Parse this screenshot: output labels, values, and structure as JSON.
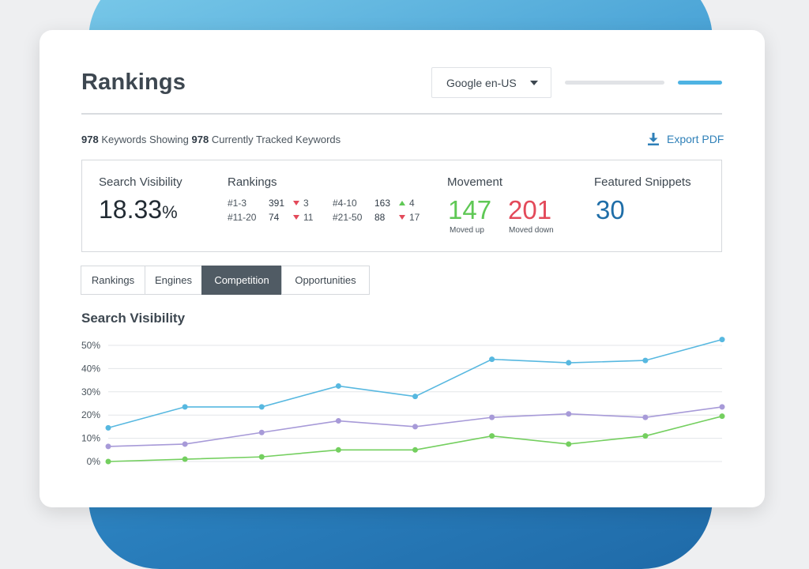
{
  "header": {
    "title": "Rankings",
    "engine_select": {
      "value": "Google en-US"
    }
  },
  "summary": {
    "tracked_count": "978",
    "tracked_text_1": "Keywords Showing",
    "tracked_count_2": "978",
    "tracked_text_2": "Currently Tracked Keywords",
    "export_label": "Export PDF"
  },
  "stats": {
    "visibility": {
      "label": "Search Visibility",
      "value": "18.33",
      "unit": "%"
    },
    "rankings": {
      "label": "Rankings",
      "rows": [
        {
          "range": "#1-3",
          "count": "391",
          "delta": "3",
          "direction": "down"
        },
        {
          "range": "#4-10",
          "count": "163",
          "delta": "4",
          "direction": "up"
        },
        {
          "range": "#11-20",
          "count": "74",
          "delta": "11",
          "direction": "down"
        },
        {
          "range": "#21-50",
          "count": "88",
          "delta": "17",
          "direction": "down"
        }
      ]
    },
    "movement": {
      "label": "Movement",
      "up_value": "147",
      "up_label": "Moved up",
      "down_value": "201",
      "down_label": "Moved down"
    },
    "snippets": {
      "label": "Featured Snippets",
      "value": "30"
    }
  },
  "tabs": [
    {
      "label": "Rankings",
      "active": false
    },
    {
      "label": "Engines",
      "active": false
    },
    {
      "label": "Competition",
      "active": true
    },
    {
      "label": "Opportunities",
      "active": false
    }
  ],
  "colors": {
    "accent": "#4eb3e3",
    "up": "#5fc855",
    "down": "#e34a5a",
    "snippets": "#1f6ea8",
    "tab_active": "#505b64"
  },
  "chart_data": {
    "type": "line",
    "title": "Search Visibility",
    "ylim": [
      0,
      50
    ],
    "yticks": [
      "0%",
      "10%",
      "20%",
      "30%",
      "40%",
      "50%"
    ],
    "grid": true,
    "x": [
      1,
      2,
      3,
      4,
      5,
      6,
      7,
      8,
      9
    ],
    "series": [
      {
        "color": "#57b8e0",
        "values": [
          14.5,
          23.5,
          23.5,
          32.5,
          28,
          44,
          42.5,
          43.5,
          52.5
        ]
      },
      {
        "color": "#a79ad8",
        "values": [
          6.5,
          7.5,
          12.5,
          17.5,
          15,
          19,
          20.5,
          19,
          23.5
        ]
      },
      {
        "color": "#74cf5f",
        "values": [
          0,
          1,
          2,
          5,
          5,
          11,
          7.5,
          11,
          19.5
        ]
      }
    ]
  }
}
